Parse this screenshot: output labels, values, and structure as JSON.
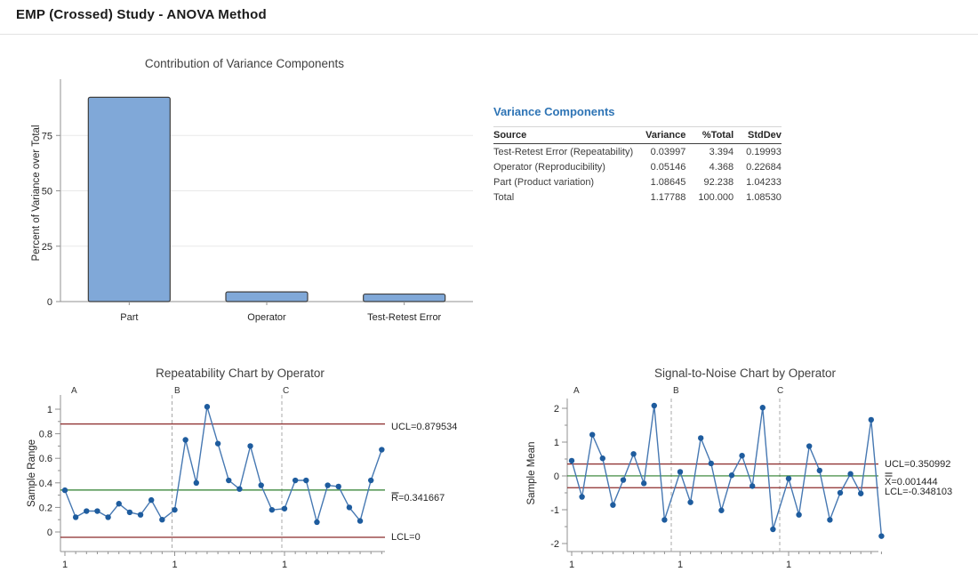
{
  "page": {
    "title": "EMP (Crossed) Study - ANOVA Method"
  },
  "variance_table": {
    "heading": "Variance Components",
    "columns": [
      "Source",
      "Variance",
      "%Total",
      "StdDev"
    ],
    "rows": [
      [
        "Test-Retest Error (Repeatability)",
        "0.03997",
        "3.394",
        "0.19993"
      ],
      [
        "Operator (Reproducibility)",
        "0.05146",
        "4.368",
        "0.22684"
      ],
      [
        "Part (Product variation)",
        "1.08645",
        "92.238",
        "1.04233"
      ],
      [
        "Total",
        "1.17788",
        "100.000",
        "1.08530"
      ]
    ]
  },
  "colors": {
    "heading_blue": "#2e74b5",
    "bar_fill": "#80a8d8",
    "bar_stroke": "#3f3f3f",
    "marker": "#1e5c9e",
    "line": "#4678b2",
    "limit": "#8b2a2a",
    "center": "#2b7d2b",
    "axis": "#909090",
    "grid": "#e9e9e9",
    "divider_dash": "#a8a8a8"
  },
  "chart_data": [
    {
      "type": "bar",
      "title": "Contribution of Variance Components",
      "xlabel": "",
      "ylabel": "Percent of Variance over Total",
      "categories": [
        "Part",
        "Operator",
        "Test-Retest Error"
      ],
      "values": [
        92.238,
        4.368,
        3.394
      ],
      "yticks": [
        0,
        25,
        50,
        75
      ],
      "ylim": [
        0,
        98
      ],
      "grid": true,
      "legend": false
    },
    {
      "type": "line",
      "subtype": "control-chart",
      "title": "Repeatability Chart by Operator",
      "ylabel": "Sample Range",
      "sections": [
        "A",
        "B",
        "C"
      ],
      "section_x_labels": [
        "1",
        "1",
        "1"
      ],
      "yticks": [
        0,
        0.2,
        0.4,
        0.6,
        0.8,
        1
      ],
      "ytick_labels": [
        "0",
        "0.2",
        "0.4",
        "0.6",
        "0.8",
        "1"
      ],
      "minor_yticks": [
        0.1,
        0.3,
        0.5,
        0.7,
        0.9
      ],
      "ylim": [
        -0.06,
        1.12
      ],
      "series": [
        {
          "name": "A",
          "values": [
            0.34,
            0.12,
            0.17,
            0.17,
            0.12,
            0.23,
            0.16,
            0.14,
            0.26,
            0.1
          ]
        },
        {
          "name": "B",
          "values": [
            0.18,
            0.75,
            0.4,
            1.02,
            0.72,
            0.42,
            0.35,
            0.7,
            0.38,
            0.18
          ]
        },
        {
          "name": "C",
          "values": [
            0.19,
            0.42,
            0.42,
            0.08,
            0.38,
            0.37,
            0.2,
            0.09,
            0.42,
            0.67
          ]
        }
      ],
      "limits": {
        "ucl": 0.879534,
        "center": 0.341667,
        "lcl": 0
      },
      "limit_labels": [
        {
          "text": "UCL=0.879534",
          "bars": 0
        },
        {
          "text": "R=0.341667",
          "bars": 1
        },
        {
          "text": "LCL=0",
          "bars": 0
        }
      ]
    },
    {
      "type": "line",
      "subtype": "control-chart",
      "title": "Signal-to-Noise Chart by Operator",
      "ylabel": "Sample Mean",
      "sections": [
        "A",
        "B",
        "C"
      ],
      "section_x_labels": [
        "1",
        "1",
        "1"
      ],
      "yticks": [
        -2,
        -1,
        0,
        1,
        2
      ],
      "ytick_labels": [
        "-2",
        "-1",
        "0",
        "1",
        "2"
      ],
      "minor_yticks": [
        -1.5,
        -0.5,
        0.5,
        1.5
      ],
      "ylim": [
        -2.35,
        2.35
      ],
      "series": [
        {
          "name": "A",
          "values": [
            0.45,
            -0.62,
            1.22,
            0.52,
            -0.86,
            -0.12,
            0.65,
            -0.22,
            2.08,
            -1.3
          ]
        },
        {
          "name": "B",
          "values": [
            0.12,
            -0.78,
            1.12,
            0.37,
            -1.02,
            0.02,
            0.6,
            -0.3,
            2.02,
            -1.58
          ]
        },
        {
          "name": "C",
          "values": [
            -0.08,
            -1.15,
            0.88,
            0.16,
            -1.3,
            -0.5,
            0.06,
            -0.52,
            1.66,
            -1.78
          ]
        }
      ],
      "limits": {
        "ucl": 0.350992,
        "center": 0.001444,
        "lcl": -0.348103
      },
      "limit_labels": [
        {
          "text": "UCL=0.350992",
          "bars": 0
        },
        {
          "text": "X=0.001444",
          "bars": 2
        },
        {
          "text": "LCL=-0.348103",
          "bars": 0
        }
      ]
    }
  ]
}
